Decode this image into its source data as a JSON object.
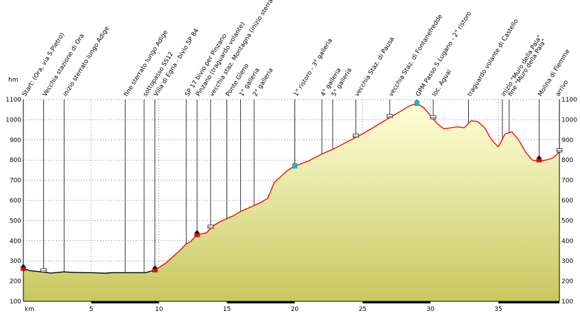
{
  "chart_data": {
    "type": "area",
    "xlabel": "km",
    "ylabel": "hm",
    "xlim": [
      0,
      39.5
    ],
    "ylim": [
      100,
      1100
    ],
    "x_ticks": [
      5,
      10,
      15,
      20,
      25,
      30,
      35
    ],
    "y_ticks": [
      100,
      200,
      300,
      400,
      500,
      600,
      700,
      800,
      900,
      1000,
      1100
    ],
    "grid": true,
    "colors": {
      "fill_top": "#ffffd8",
      "fill_bottom": "#c8c860",
      "profile_dark": "#000000",
      "profile_climb": "#ff0000",
      "marker_sprint": "#ff0000",
      "marker_feed": "#00c8d8",
      "grid": "#000000"
    },
    "series": [
      {
        "x": [
          0,
          0.5,
          1,
          1.5,
          2,
          2.5,
          3,
          3.5,
          4,
          4.5,
          5,
          5.5,
          6,
          6.5,
          7,
          7.5,
          8,
          8.5,
          9,
          9.7,
          10.5,
          11,
          11.5,
          12,
          12.3,
          12.8,
          13.5,
          14,
          14.5,
          15,
          15.5,
          16,
          16.5,
          17,
          17.5,
          18,
          18.5,
          19,
          19.5,
          20,
          21,
          22,
          23,
          24,
          25,
          26,
          27,
          28,
          28.5,
          29,
          29.5,
          30,
          30.5,
          31,
          31.5,
          32,
          32.5,
          33,
          33.5,
          34,
          34.5,
          35,
          35.5,
          36,
          36.5,
          37,
          37.5,
          38,
          38.5,
          39,
          39.5
        ],
        "y": [
          262,
          252,
          248,
          245,
          240,
          243,
          246,
          244,
          243,
          242,
          242,
          241,
          239,
          242,
          242,
          242,
          242,
          242,
          242,
          255,
          290,
          320,
          350,
          385,
          395,
          430,
          440,
          475,
          495,
          510,
          525,
          545,
          560,
          575,
          590,
          610,
          690,
          720,
          750,
          770,
          795,
          830,
          860,
          895,
          930,
          970,
          1010,
          1050,
          1070,
          1080,
          1060,
          1020,
          980,
          955,
          960,
          965,
          960,
          995,
          990,
          960,
          900,
          865,
          930,
          940,
          900,
          840,
          800,
          795,
          800,
          810,
          840
        ]
      }
    ],
    "markers": [
      {
        "x": 0,
        "y": 262,
        "kind": "sprint"
      },
      {
        "x": 9.7,
        "y": 255,
        "kind": "sprint"
      },
      {
        "x": 12.8,
        "y": 430,
        "kind": "sprint"
      },
      {
        "x": 20,
        "y": 770,
        "kind": "feed"
      },
      {
        "x": 29,
        "y": 1080,
        "kind": "feed"
      },
      {
        "x": 38,
        "y": 800,
        "kind": "sprint"
      }
    ],
    "annotations": [
      {
        "x": 0,
        "text": "Start: (Ora, via S.Pietro)"
      },
      {
        "x": 1.5,
        "text": "Vecchia stazione di Ora"
      },
      {
        "x": 3,
        "text": "inizio sterrato lungo Adige"
      },
      {
        "x": 7.5,
        "text": "fine sterrato lungo Adige"
      },
      {
        "x": 8.9,
        "text": "sottopasso SS12"
      },
      {
        "x": 9.7,
        "text": "Villa di Egna - bivio SP 84"
      },
      {
        "x": 12,
        "text": "SP 17 bivio per Pinzano"
      },
      {
        "x": 12.8,
        "text": "Pinzano (traguardo volante)"
      },
      {
        "x": 13.8,
        "text": "vecchia staz. Montagna (inizio sterrato)"
      },
      {
        "x": 15,
        "text": "Ponte Gleno"
      },
      {
        "x": 16,
        "text": "1° galleria"
      },
      {
        "x": 17,
        "text": "2° galleria"
      },
      {
        "x": 20,
        "text": "1° ristoro - 3° galleria"
      },
      {
        "x": 22,
        "text": "4° galleria"
      },
      {
        "x": 22.8,
        "text": "5° galleria"
      },
      {
        "x": 24.5,
        "text": "vecchia Staz. di Pausa"
      },
      {
        "x": 27,
        "text": "vecchia Staz. di Fontanefredde"
      },
      {
        "x": 29,
        "text": "GPM Passo S.Lugano - 2° ristoro"
      },
      {
        "x": 30.2,
        "text": "loc. Aguai"
      },
      {
        "x": 32.8,
        "text": "traguardo volante di Castello"
      },
      {
        "x": 35.3,
        "text": "inizio \"Muro della Pala\""
      },
      {
        "x": 35.8,
        "text": "fine \"Muro della Pala\""
      },
      {
        "x": 38,
        "text": "Molina di Fiemme"
      },
      {
        "x": 39.5,
        "text": "arrivo"
      }
    ]
  }
}
